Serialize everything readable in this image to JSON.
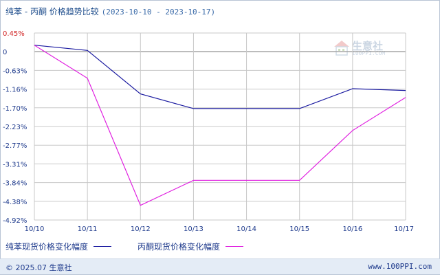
{
  "header": {
    "title": "纯苯 - 丙酮 价格趋势比较",
    "date_range": "(2023-10-10 - 2023-10-17)"
  },
  "chart_data": {
    "type": "line",
    "title": "纯苯 - 丙酮 价格趋势比较",
    "categories": [
      "10/10",
      "10/11",
      "10/12",
      "10/13",
      "10/14",
      "10/15",
      "10/16",
      "10/17"
    ],
    "y_ticks": [
      "0.45%",
      "0",
      "-0.63%",
      "-1.16%",
      "-1.70%",
      "-2.23%",
      "-2.77%",
      "-3.31%",
      "-3.84%",
      "-4.38%",
      "-4.92%"
    ],
    "ylim": [
      -4.92,
      0.45
    ],
    "grid": true,
    "legend_position": "bottom-left",
    "series": [
      {
        "name": "纯苯现货价格变化幅度",
        "color": "#1a1aa0",
        "values": [
          0.1,
          -0.05,
          -1.3,
          -1.72,
          -1.72,
          -1.72,
          -1.15,
          -1.2
        ]
      },
      {
        "name": "丙酮现货价格变化幅度",
        "color": "#e020e0",
        "values": [
          0.1,
          -0.85,
          -4.5,
          -3.78,
          -3.78,
          -3.78,
          -2.35,
          -1.4
        ]
      }
    ]
  },
  "watermark": {
    "name": "生意社",
    "url": "100PPI.COM",
    "color": "#9fb4cc"
  },
  "footer": {
    "copyright": "© 2025.07 生意社",
    "site": "www.100PPI.com"
  },
  "colors": {
    "axis_text": "#1e3a8c",
    "positive_text": "#d02020",
    "grid": "#c8c8c8",
    "zero_line": "#a0a0a0"
  }
}
